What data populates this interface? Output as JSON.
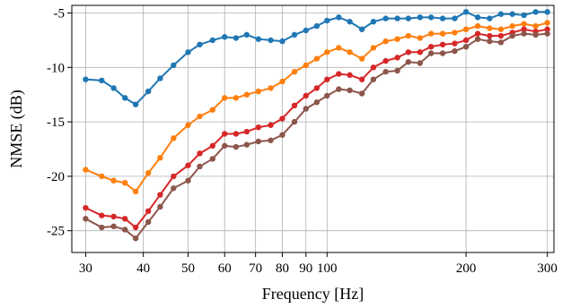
{
  "chart_data": {
    "type": "line",
    "title": "",
    "xlabel": "Frequency [Hz]",
    "ylabel": "NMSE (dB)",
    "x_scale": "log",
    "xlim": [
      28,
      310
    ],
    "ylim": [
      -27,
      -4.3
    ],
    "x_ticks": [
      30,
      40,
      50,
      60,
      70,
      80,
      90,
      100,
      200,
      300
    ],
    "x_tick_labels": [
      "30",
      "40",
      "50",
      "60",
      "70",
      "80",
      "90",
      "100",
      "200",
      "300"
    ],
    "y_ticks": [
      -25,
      -20,
      -15,
      -10,
      -5
    ],
    "y_tick_labels": [
      "-25",
      "-20",
      "-15",
      "-10",
      "-5"
    ],
    "grid": true,
    "legend": "none",
    "x": [
      30,
      32.5,
      34.5,
      36.5,
      38.5,
      41,
      43.5,
      46.5,
      50,
      53,
      56.5,
      60,
      63.5,
      67,
      71,
      75.5,
      80,
      85,
      90,
      95,
      100,
      106,
      112,
      119,
      126,
      134,
      142,
      150,
      159,
      168,
      178,
      189,
      200,
      212,
      225,
      238,
      252,
      267,
      283,
      300
    ],
    "series": [
      {
        "color": "#1f77b4",
        "values": [
          -11.1,
          -11.2,
          -11.9,
          -12.8,
          -13.4,
          -12.2,
          -11.0,
          -9.8,
          -8.6,
          -7.9,
          -7.5,
          -7.2,
          -7.3,
          -7.0,
          -7.4,
          -7.5,
          -7.6,
          -7.0,
          -6.6,
          -6.2,
          -5.7,
          -5.4,
          -5.8,
          -6.5,
          -5.8,
          -5.5,
          -5.5,
          -5.5,
          -5.4,
          -5.4,
          -5.5,
          -5.5,
          -4.9,
          -5.4,
          -5.5,
          -5.1,
          -5.1,
          -5.2,
          -4.9,
          -4.9
        ]
      },
      {
        "color": "#ff7f0e",
        "values": [
          -19.4,
          -20.0,
          -20.4,
          -20.6,
          -21.4,
          -19.7,
          -18.3,
          -16.5,
          -15.3,
          -14.5,
          -13.9,
          -12.8,
          -12.8,
          -12.5,
          -12.2,
          -11.9,
          -11.3,
          -10.4,
          -9.8,
          -9.2,
          -8.6,
          -8.2,
          -8.6,
          -9.2,
          -8.2,
          -7.6,
          -7.4,
          -7.1,
          -7.3,
          -6.9,
          -6.9,
          -6.8,
          -6.5,
          -6.2,
          -6.4,
          -6.5,
          -6.2,
          -6.0,
          -6.2,
          -5.9
        ]
      },
      {
        "color": "#d62728",
        "values": [
          -22.9,
          -23.6,
          -23.7,
          -23.9,
          -24.7,
          -23.2,
          -21.7,
          -20.0,
          -19.0,
          -17.9,
          -17.2,
          -16.1,
          -16.1,
          -15.9,
          -15.5,
          -15.3,
          -14.7,
          -13.5,
          -12.6,
          -11.9,
          -11.1,
          -10.6,
          -10.7,
          -11.1,
          -10.0,
          -9.4,
          -9.1,
          -8.6,
          -8.6,
          -8.1,
          -7.9,
          -7.8,
          -7.5,
          -6.9,
          -7.1,
          -7.1,
          -6.8,
          -6.5,
          -6.7,
          -6.5
        ]
      },
      {
        "color": "#8c564b",
        "values": [
          -23.9,
          -24.7,
          -24.6,
          -24.9,
          -25.7,
          -24.2,
          -22.8,
          -21.1,
          -20.4,
          -19.1,
          -18.4,
          -17.2,
          -17.3,
          -17.1,
          -16.8,
          -16.7,
          -16.2,
          -15.0,
          -13.8,
          -13.2,
          -12.6,
          -12.0,
          -12.1,
          -12.4,
          -11.1,
          -10.4,
          -10.3,
          -9.5,
          -9.6,
          -8.7,
          -8.7,
          -8.5,
          -8.1,
          -7.4,
          -7.6,
          -7.7,
          -7.1,
          -6.9,
          -7.0,
          -6.9
        ]
      }
    ]
  }
}
